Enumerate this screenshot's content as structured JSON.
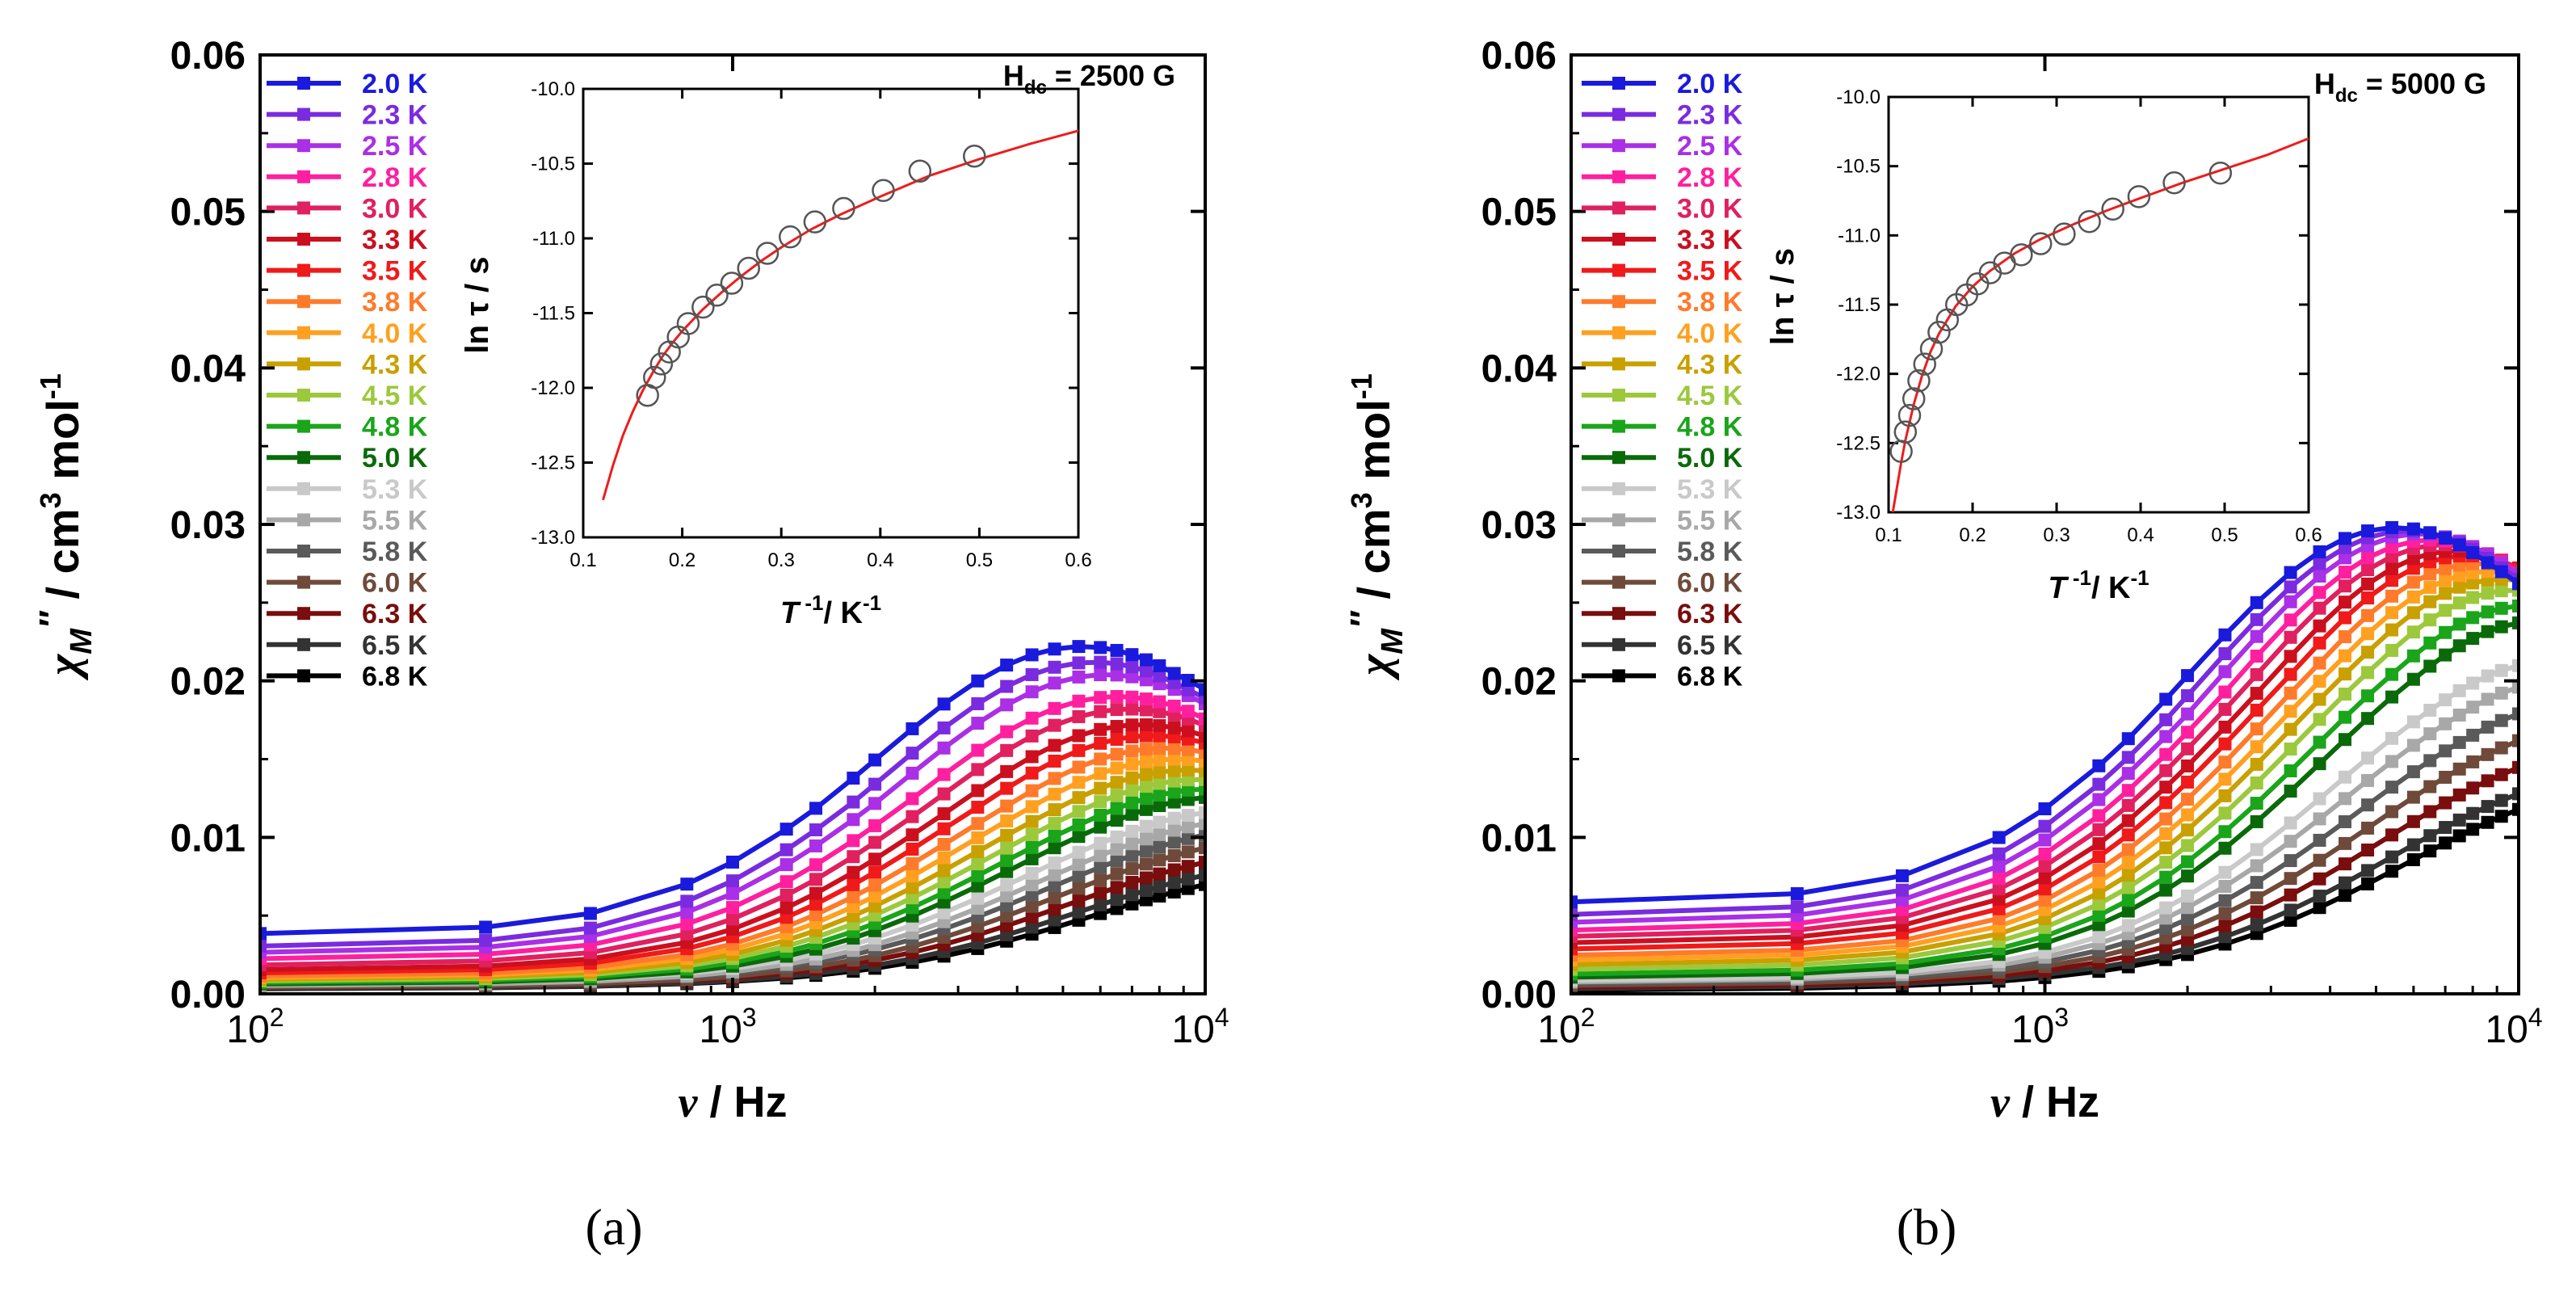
{
  "figure": {
    "temperatures": [
      "2.0 K",
      "2.3 K",
      "2.5 K",
      "2.8 K",
      "3.0 K",
      "3.3 K",
      "3.5 K",
      "3.8 K",
      "4.0 K",
      "4.3 K",
      "4.5 K",
      "4.8 K",
      "5.0 K",
      "5.3 K",
      "5.5 K",
      "5.8 K",
      "6.0 K",
      "6.3 K",
      "6.5 K",
      "6.8 K"
    ],
    "colors": [
      "#1a1adc",
      "#7a2be0",
      "#aa2fe6",
      "#ff1f9f",
      "#e0205f",
      "#cc0f1f",
      "#f01a1a",
      "#ff7a2a",
      "#ffa020",
      "#c8a000",
      "#9cc83c",
      "#1aa51a",
      "#0a6a0a",
      "#c9c9c9",
      "#a8a8a8",
      "#5a5a5a",
      "#6f4a3a",
      "#7a0d0d",
      "#333333",
      "#000000"
    ]
  },
  "chart_data": [
    {
      "panel_label": "(a)",
      "type": "line",
      "xscale": "log",
      "xlabel_sym": "ν",
      "xlabel_unit": " / Hz",
      "ylabel_sym": "χ",
      "ylabel_sub": "M",
      "ylabel_prime": "″",
      "ylabel_unit": " / cm",
      "ylabel_exp1": "3",
      "ylabel_mid": " mol",
      "ylabel_exp2": "-1",
      "xlim": [
        100,
        10000
      ],
      "ylim": [
        0,
        0.06
      ],
      "yticks": [
        "0.00",
        "0.01",
        "0.02",
        "0.03",
        "0.04",
        "0.05",
        "0.06"
      ],
      "xtick_base": "10",
      "xtick_exps": [
        "2",
        "3",
        "4"
      ],
      "x": [
        100,
        300,
        500,
        800,
        1000,
        1300,
        1500,
        1800,
        2000,
        2400,
        2800,
        3300,
        3800,
        4300,
        4800,
        5400,
        6000,
        6500,
        7000,
        7500,
        8000,
        8600,
        9200,
        10000
      ],
      "series_params": {
        "peak": [
          0.0222,
          0.0212,
          0.0204,
          0.019,
          0.0182,
          0.0172,
          0.0165,
          0.0157,
          0.015,
          0.0143,
          0.0137,
          0.0131,
          0.0126,
          0.0117,
          0.0111,
          0.0105,
          0.0098,
          0.009,
          0.0083,
          0.0078
        ],
        "low": [
          0.0038,
          0.003,
          0.0026,
          0.0022,
          0.0018,
          0.0015,
          0.0013,
          0.0011,
          0.001,
          0.0009,
          0.0008,
          0.0007,
          0.0006,
          0.0006,
          0.0005,
          0.0005,
          0.0004,
          0.0004,
          0.0003,
          0.0003
        ]
      },
      "inset": {
        "ylabel": "ln τ / s",
        "xlabel_t": "T",
        "xlabel_exp": " -1",
        "xlabel_unit": "/ K",
        "xlabel_unit_exp": "-1",
        "field_h": "H",
        "field_sub": "dc",
        "field_val": " = 2500 G",
        "xlim": [
          0.1,
          0.6
        ],
        "ylim": [
          -13.0,
          -10.0
        ],
        "xticks": [
          "0.1",
          "0.2",
          "0.3",
          "0.4",
          "0.5",
          "0.6"
        ],
        "yticks": [
          "-13.0",
          "-12.5",
          "-12.0",
          "-11.5",
          "-11.0",
          "-10.5",
          "-10.0"
        ],
        "points_x": [
          0.165,
          0.172,
          0.179,
          0.187,
          0.196,
          0.206,
          0.221,
          0.235,
          0.25,
          0.267,
          0.286,
          0.309,
          0.334,
          0.363,
          0.403,
          0.44,
          0.495
        ],
        "points_y": [
          -12.05,
          -11.93,
          -11.84,
          -11.76,
          -11.66,
          -11.57,
          -11.46,
          -11.38,
          -11.3,
          -11.2,
          -11.1,
          -10.99,
          -10.89,
          -10.8,
          -10.68,
          -10.55,
          -10.45
        ],
        "fit_x": [
          0.12,
          0.13,
          0.14,
          0.15,
          0.16,
          0.17,
          0.18,
          0.19,
          0.2,
          0.22,
          0.24,
          0.26,
          0.28,
          0.3,
          0.33,
          0.36,
          0.4,
          0.45,
          0.5,
          0.55,
          0.6
        ],
        "fit_y": [
          -12.75,
          -12.52,
          -12.32,
          -12.16,
          -12.02,
          -11.9,
          -11.79,
          -11.7,
          -11.62,
          -11.48,
          -11.36,
          -11.25,
          -11.15,
          -11.06,
          -10.94,
          -10.84,
          -10.72,
          -10.58,
          -10.47,
          -10.37,
          -10.28
        ]
      }
    },
    {
      "panel_label": "(b)",
      "type": "line",
      "xscale": "log",
      "xlabel_sym": "ν",
      "xlabel_unit": " / Hz",
      "ylabel_sym": "χ",
      "ylabel_sub": "M",
      "ylabel_prime": "″",
      "ylabel_unit": " / cm",
      "ylabel_exp1": "3",
      "ylabel_mid": " mol",
      "ylabel_exp2": "-1",
      "xlim": [
        100,
        10000
      ],
      "ylim": [
        0,
        0.06
      ],
      "yticks": [
        "0.00",
        "0.01",
        "0.02",
        "0.03",
        "0.04",
        "0.05",
        "0.06"
      ],
      "xtick_base": "10",
      "xtick_exps": [
        "2",
        "3",
        "4"
      ],
      "x": [
        100,
        300,
        500,
        800,
        1000,
        1300,
        1500,
        1800,
        2000,
        2400,
        2800,
        3300,
        3800,
        4300,
        4800,
        5400,
        6000,
        6500,
        7000,
        7500,
        8000,
        8600,
        9200,
        10000
      ],
      "series_params": {
        "peak": [
          0.0298,
          0.0296,
          0.0294,
          0.029,
          0.0287,
          0.0283,
          0.028,
          0.0275,
          0.027,
          0.0265,
          0.0258,
          0.0248,
          0.0238,
          0.0212,
          0.02,
          0.0185,
          0.017,
          0.0155,
          0.014,
          0.0132
        ],
        "low": [
          0.0058,
          0.005,
          0.0045,
          0.004,
          0.0036,
          0.0032,
          0.0028,
          0.0024,
          0.0021,
          0.0018,
          0.0015,
          0.0012,
          0.001,
          0.0008,
          0.0007,
          0.0006,
          0.0005,
          0.0004,
          0.0003,
          0.0002
        ]
      },
      "inset": {
        "ylabel": "ln τ / s",
        "xlabel_t": "T",
        "xlabel_exp": " -1",
        "xlabel_unit": "/ K",
        "xlabel_unit_exp": "-1",
        "field_h": "H",
        "field_sub": "dc",
        "field_val": " = 5000 G",
        "xlim": [
          0.1,
          0.6
        ],
        "ylim": [
          -13.0,
          -10.0
        ],
        "xticks": [
          "0.1",
          "0.2",
          "0.3",
          "0.4",
          "0.5",
          "0.6"
        ],
        "yticks": [
          "-13.0",
          "-12.5",
          "-12.0",
          "-11.5",
          "-11.0",
          "-10.5",
          "-10.0"
        ],
        "points_x": [
          0.115,
          0.12,
          0.125,
          0.13,
          0.136,
          0.143,
          0.151,
          0.16,
          0.17,
          0.181,
          0.193,
          0.206,
          0.221,
          0.238,
          0.258,
          0.281,
          0.309,
          0.339,
          0.367,
          0.398,
          0.44,
          0.495
        ],
        "points_y": [
          -12.56,
          -12.42,
          -12.3,
          -12.18,
          -12.05,
          -11.93,
          -11.82,
          -11.7,
          -11.61,
          -11.5,
          -11.43,
          -11.35,
          -11.27,
          -11.2,
          -11.14,
          -11.06,
          -10.99,
          -10.9,
          -10.81,
          -10.72,
          -10.62,
          -10.55
        ],
        "fit_x": [
          0.105,
          0.11,
          0.115,
          0.12,
          0.13,
          0.14,
          0.15,
          0.16,
          0.18,
          0.2,
          0.22,
          0.25,
          0.28,
          0.32,
          0.36,
          0.4,
          0.45,
          0.5,
          0.55,
          0.6
        ],
        "fit_y": [
          -13.0,
          -12.82,
          -12.64,
          -12.48,
          -12.22,
          -12.01,
          -11.84,
          -11.71,
          -11.51,
          -11.37,
          -11.26,
          -11.13,
          -11.03,
          -10.92,
          -10.82,
          -10.73,
          -10.62,
          -10.52,
          -10.42,
          -10.3
        ]
      }
    }
  ]
}
